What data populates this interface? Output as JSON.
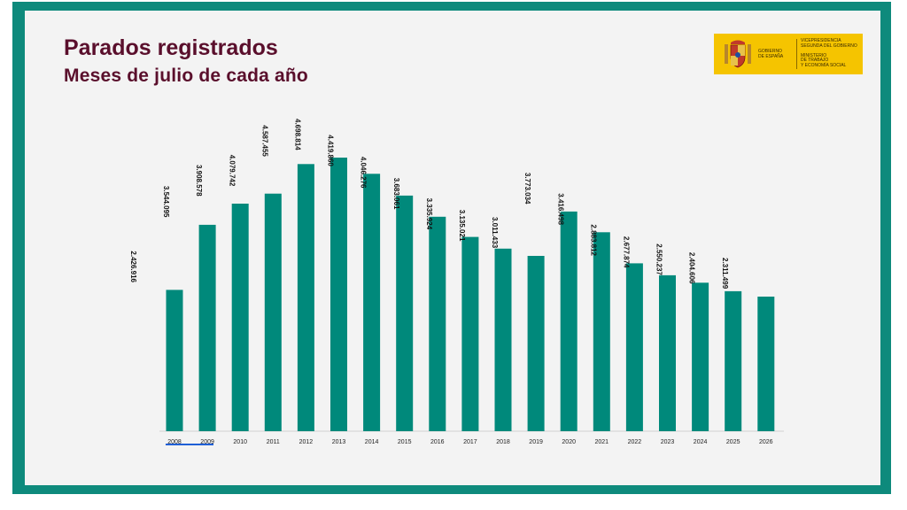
{
  "header": {
    "title": "Parados registrados",
    "subtitle": "Meses de julio de cada año"
  },
  "logo": {
    "left_text": "GOBIERNO\nDE ESPAÑA",
    "right_text": "VICEPRESIDENCIA\nSEGUNDA DEL GOBIERNO\n\nMINISTERIO\nDE TRABAJO\nY ECONOMÍA SOCIAL",
    "color": "#f5c400"
  },
  "colors": {
    "bar": "#00897b",
    "frame": "#0e8a7c",
    "title": "#5a0f2c",
    "selection": "#1f5fd6"
  },
  "chart_data": {
    "type": "bar",
    "title": "Parados registrados",
    "subtitle": "Meses de julio de cada año",
    "categories": [
      "2008",
      "2009",
      "2010",
      "2011",
      "2012",
      "2013",
      "2014",
      "2015",
      "2016",
      "2017",
      "2018",
      "2019",
      "2020",
      "2021",
      "2022",
      "2023",
      "2024",
      "2025",
      "2026"
    ],
    "tick_labels": [
      "2008",
      "2009",
      "2010",
      "2011",
      "2012",
      "2013",
      "2014",
      "2015",
      "2016",
      "2017",
      "2018",
      "2019",
      "2020",
      "2021",
      "2022",
      "2023",
      "2024",
      "2025",
      "2026"
    ],
    "values": [
      2426916,
      3544095,
      3908578,
      4079742,
      4587455,
      4698814,
      4419860,
      4046276,
      3683061,
      3335924,
      3135021,
      3011433,
      3773034,
      3416498,
      2883812,
      2677874,
      2550237,
      2404606,
      2311499
    ],
    "data_labels": [
      "2.426.916",
      "3.544.095",
      "3.908.578",
      "4.079.742",
      "4.587.455",
      "4.698.814",
      "4.419.860",
      "4.046.276",
      "3.683.061",
      "3.335.924",
      "3.135.021",
      "3.011.433",
      "3.773.034",
      "3.416.498",
      "2.883.812",
      "2.677.874",
      "2.550.237",
      "2.404.606",
      "2.311.499"
    ],
    "ylim": [
      0,
      5200000
    ],
    "grid": false,
    "legend": "none",
    "xlabel": "",
    "ylabel": ""
  }
}
